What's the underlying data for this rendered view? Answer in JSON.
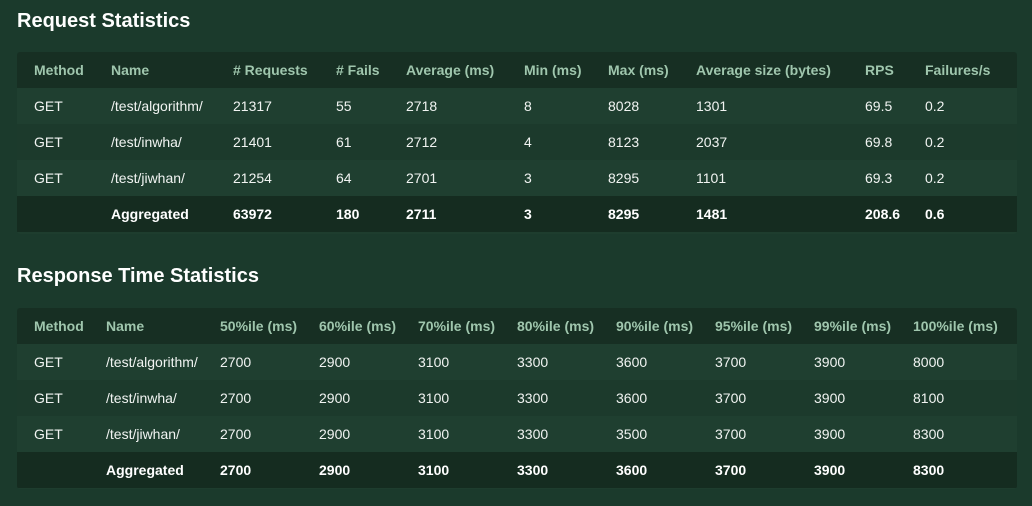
{
  "request_stats": {
    "title": "Request Statistics",
    "columns": [
      "Method",
      "Name",
      "# Requests",
      "# Fails",
      "Average (ms)",
      "Min (ms)",
      "Max (ms)",
      "Average size (bytes)",
      "RPS",
      "Failures/s"
    ],
    "rows": [
      [
        "GET",
        "/test/algorithm/",
        "21317",
        "55",
        "2718",
        "8",
        "8028",
        "1301",
        "69.5",
        "0.2"
      ],
      [
        "GET",
        "/test/inwha/",
        "21401",
        "61",
        "2712",
        "4",
        "8123",
        "2037",
        "69.8",
        "0.2"
      ],
      [
        "GET",
        "/test/jiwhan/",
        "21254",
        "64",
        "2701",
        "3",
        "8295",
        "1101",
        "69.3",
        "0.2"
      ],
      [
        "",
        "Aggregated",
        "63972",
        "180",
        "2711",
        "3",
        "8295",
        "1481",
        "208.6",
        "0.6"
      ]
    ]
  },
  "response_stats": {
    "title": "Response Time Statistics",
    "columns": [
      "Method",
      "Name",
      "50%ile (ms)",
      "60%ile (ms)",
      "70%ile (ms)",
      "80%ile (ms)",
      "90%ile (ms)",
      "95%ile (ms)",
      "99%ile (ms)",
      "100%ile (ms)"
    ],
    "rows": [
      [
        "GET",
        "/test/algorithm/",
        "2700",
        "2900",
        "3100",
        "3300",
        "3600",
        "3700",
        "3900",
        "8000"
      ],
      [
        "GET",
        "/test/inwha/",
        "2700",
        "2900",
        "3100",
        "3300",
        "3600",
        "3700",
        "3900",
        "8100"
      ],
      [
        "GET",
        "/test/jiwhan/",
        "2700",
        "2900",
        "3100",
        "3300",
        "3500",
        "3700",
        "3900",
        "8300"
      ],
      [
        "",
        "Aggregated",
        "2700",
        "2900",
        "3100",
        "3300",
        "3600",
        "3700",
        "3900",
        "8300"
      ]
    ]
  }
}
